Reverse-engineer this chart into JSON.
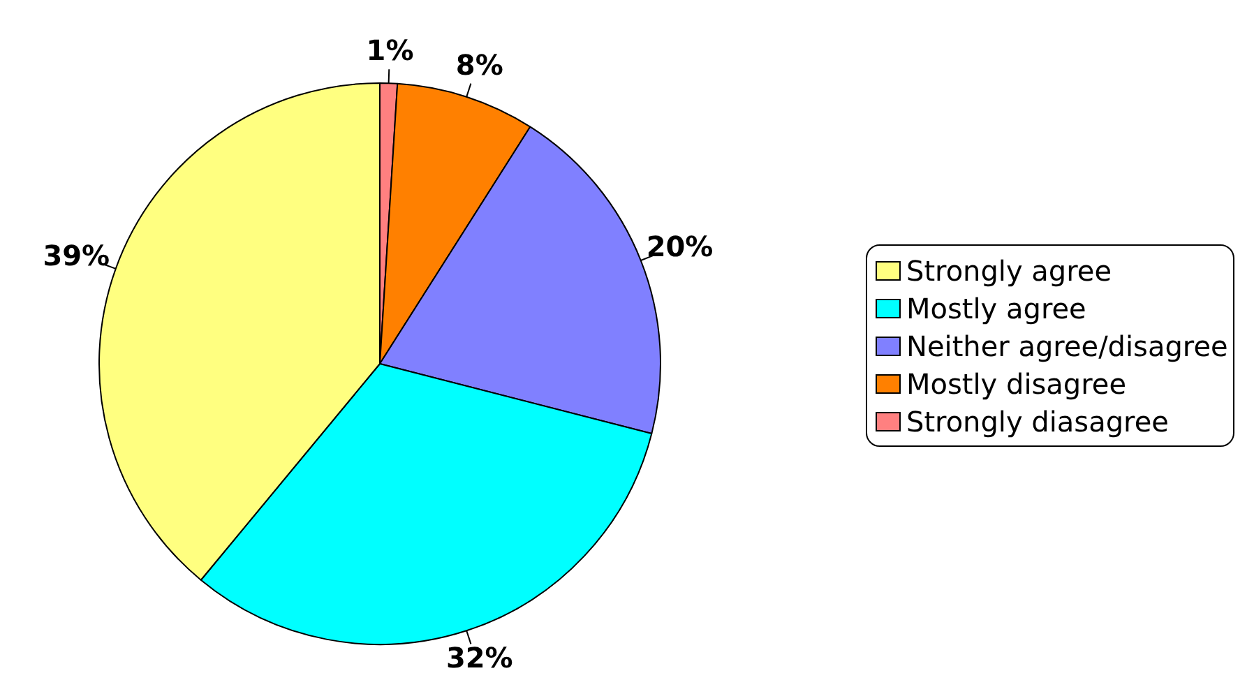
{
  "chart_data": {
    "type": "pie",
    "categories": [
      "Strongly agree",
      "Mostly agree",
      "Neither agree/disagree",
      "Mostly disagree",
      "Strongly diasagree"
    ],
    "values": [
      39,
      32,
      20,
      8,
      1
    ],
    "value_labels": [
      "39%",
      "32%",
      "20%",
      "8%",
      "1%"
    ],
    "colors": [
      "#ffff80",
      "#00ffff",
      "#8080ff",
      "#ff8000",
      "#ff8080"
    ],
    "legend": "right"
  }
}
